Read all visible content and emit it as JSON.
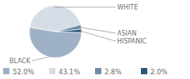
{
  "chart_data": {
    "type": "pie",
    "categories": [
      "BLACK",
      "WHITE",
      "ASIAN",
      "HISPANIC"
    ],
    "values": [
      52.0,
      43.1,
      2.8,
      2.0
    ],
    "value_labels": [
      "52.0%",
      "43.1%",
      "2.8%",
      "2.0%"
    ],
    "colors": [
      "#9fb1c6",
      "#d6dde6",
      "#6e8cab",
      "#2f5779"
    ]
  }
}
